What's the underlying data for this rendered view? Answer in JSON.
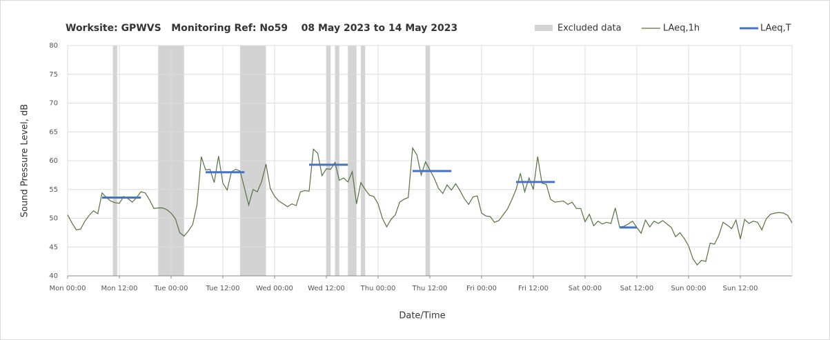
{
  "chart_data": {
    "type": "line",
    "title": "Worksite: GPWVS   Monitoring Ref: No59    08 May 2023 to 14 May 2023",
    "xlabel": "Date/Time",
    "ylabel": "Sound Pressure Level, dB",
    "xlim": [
      0,
      168
    ],
    "xticks": [
      {
        "value": 0,
        "label": "Mon 00:00"
      },
      {
        "value": 12,
        "label": "Mon 12:00"
      },
      {
        "value": 24,
        "label": "Tue 00:00"
      },
      {
        "value": 36,
        "label": "Tue 12:00"
      },
      {
        "value": 48,
        "label": "Wed 00:00"
      },
      {
        "value": 60,
        "label": "Wed 12:00"
      },
      {
        "value": 72,
        "label": "Thu 00:00"
      },
      {
        "value": 84,
        "label": "Thu 12:00"
      },
      {
        "value": 96,
        "label": "Fri 00:00"
      },
      {
        "value": 108,
        "label": "Fri 12:00"
      },
      {
        "value": 120,
        "label": "Sat 00:00"
      },
      {
        "value": 132,
        "label": "Sat 12:00"
      },
      {
        "value": 144,
        "label": "Sun 00:00"
      },
      {
        "value": 156,
        "label": "Sun 12:00"
      }
    ],
    "ylim": [
      40,
      80
    ],
    "yticks": [
      40,
      45,
      50,
      55,
      60,
      65,
      70,
      75,
      80
    ],
    "grid": true,
    "excluded": {
      "name": "Excluded data",
      "color": "#d3d3d3",
      "x_start": [
        10.5,
        21,
        40,
        60,
        62,
        65,
        68,
        83
      ],
      "x_end": [
        11.5,
        27,
        46,
        61,
        63,
        67,
        69,
        84
      ]
    },
    "series": [
      {
        "name": "LAeq,1h",
        "color": "#55703f",
        "x": [
          0,
          1,
          2,
          3,
          4,
          5,
          6,
          7,
          8,
          9,
          10,
          11,
          12,
          13,
          14,
          15,
          16,
          17,
          18,
          19,
          20,
          21,
          22,
          23,
          24,
          25,
          26,
          27,
          28,
          29,
          30,
          31,
          32,
          33,
          34,
          35,
          36,
          37,
          38,
          39,
          40,
          41,
          42,
          43,
          44,
          45,
          46,
          47,
          48,
          49,
          50,
          51,
          52,
          53,
          54,
          55,
          56,
          57,
          58,
          59,
          60,
          61,
          62,
          63,
          64,
          65,
          66,
          67,
          68,
          69,
          70,
          71,
          72,
          73,
          74,
          75,
          76,
          77,
          78,
          79,
          80,
          81,
          82,
          83,
          84,
          85,
          86,
          87,
          88,
          89,
          90,
          91,
          92,
          93,
          94,
          95,
          96,
          97,
          98,
          99,
          100,
          101,
          102,
          103,
          104,
          105,
          106,
          107,
          108,
          109,
          110,
          111,
          112,
          113,
          114,
          115,
          116,
          117,
          118,
          119,
          120,
          121,
          122,
          123,
          124,
          125,
          126,
          127,
          128,
          129,
          130,
          131,
          132,
          133,
          134,
          135,
          136,
          137,
          138,
          139,
          140,
          141,
          142,
          143,
          144,
          145,
          146,
          147,
          148,
          149,
          150,
          151,
          152,
          153,
          154,
          155,
          156,
          157,
          158,
          159,
          160,
          161,
          162,
          163,
          164,
          165,
          166,
          167,
          168
        ],
        "values": [
          50.6,
          49.2,
          48.0,
          48.1,
          49.5,
          50.5,
          51.3,
          50.8,
          54.4,
          53.6,
          53.0,
          52.7,
          52.6,
          53.8,
          53.4,
          52.8,
          53.6,
          54.6,
          54.4,
          53.2,
          51.7,
          51.8,
          51.8,
          51.5,
          50.9,
          49.9,
          47.5,
          46.9,
          47.8,
          48.9,
          52.3,
          60.7,
          58.4,
          58.5,
          56.2,
          60.8,
          56.1,
          54.9,
          58.1,
          58.5,
          58.2,
          55.3,
          52.3,
          55.0,
          54.6,
          56.4,
          59.4,
          55.2,
          53.8,
          53.0,
          52.5,
          52.0,
          52.5,
          52.2,
          54.6,
          54.8,
          54.7,
          62.0,
          61.3,
          57.4,
          58.6,
          58.5,
          59.7,
          56.6,
          57.0,
          56.3,
          58.1,
          52.5,
          56.2,
          55.0,
          54.0,
          53.8,
          52.5,
          50.0,
          48.5,
          49.8,
          50.6,
          52.8,
          53.3,
          53.6,
          62.2,
          61.0,
          57.5,
          59.8,
          58.4,
          57.0,
          55.2,
          54.3,
          55.8,
          54.9,
          56.0,
          54.8,
          53.4,
          52.4,
          53.7,
          53.9,
          50.9,
          50.4,
          50.3,
          49.3,
          49.6,
          50.6,
          51.6,
          53.2,
          55.0,
          57.8,
          54.6,
          57.0,
          55.0,
          60.7,
          56.1,
          55.9,
          53.3,
          52.8,
          52.9,
          53.0,
          52.4,
          52.8,
          51.7,
          51.7,
          49.4,
          50.7,
          48.7,
          49.5,
          49.0,
          49.3,
          49.1,
          51.8,
          48.5,
          48.6,
          49.0,
          49.5,
          48.4,
          47.4,
          49.7,
          48.5,
          49.5,
          49.1,
          49.6,
          49.0,
          48.4,
          46.8,
          47.5,
          46.5,
          45.2,
          43.0,
          41.9,
          42.7,
          42.5,
          45.7,
          45.5,
          47.0,
          49.3,
          48.8,
          48.2,
          49.7,
          46.4,
          49.8,
          49.1,
          49.5,
          49.3,
          48.0,
          49.9,
          50.7,
          50.9,
          51.0,
          50.9,
          50.5,
          49.2
        ]
      },
      {
        "name": "LAeq,T",
        "color": "#4472c4",
        "x_start": [
          8,
          32,
          56,
          80,
          104,
          128
        ],
        "x_end": [
          17,
          41,
          65,
          89,
          113,
          132
        ],
        "values": [
          53.6,
          58.0,
          59.3,
          58.2,
          56.3,
          48.4
        ]
      }
    ]
  }
}
